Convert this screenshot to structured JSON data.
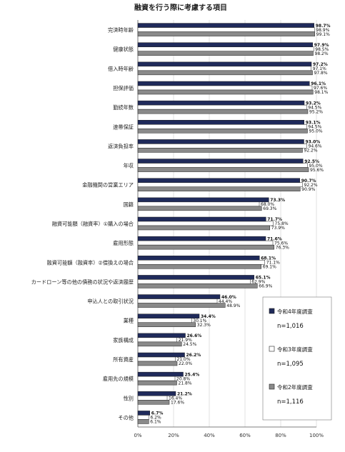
{
  "chart_data": {
    "type": "bar",
    "orientation": "horizontal",
    "title": "融資を行う際に考慮する項目",
    "xlim": [
      0,
      100
    ],
    "x_ticks": [
      "0%",
      "20%",
      "40%",
      "60%",
      "80%",
      "100%"
    ],
    "grid": true,
    "legend_position": "lower-right",
    "categories": [
      "完済時年齢",
      "健康状態",
      "借入時年齢",
      "担保評価",
      "勤続年数",
      "連帯保証",
      "返済負担率",
      "年収",
      "金融機関の営業エリア",
      "国籍",
      "融資可能額（融資率）①購入の場合",
      "雇用形態",
      "融資可能額（融資率）②借換えの場合",
      "カードローン等の他の債務の状況や返済履歴",
      "申込人との取引状況",
      "業種",
      "家族構成",
      "所有資産",
      "雇用先の規模",
      "性別",
      "その他"
    ],
    "series": [
      {
        "name": "令和4年度調査",
        "color": "#1f2a5a",
        "values": [
          98.7,
          97.9,
          97.2,
          96.1,
          93.2,
          93.1,
          93.0,
          92.5,
          90.7,
          73.3,
          71.7,
          71.6,
          68.1,
          65.1,
          46.0,
          34.4,
          26.6,
          26.2,
          25.4,
          21.2,
          6.7
        ],
        "labels": [
          "98.7%",
          "97.9%",
          "97.2%",
          "96.1%",
          "93.2%",
          "93.1%",
          "93.0%",
          "92.5%",
          "90.7%",
          "73.3%",
          "71.7%",
          "71.6%",
          "68.1%",
          "65.1%",
          "46.0%",
          "34.4%",
          "26.6%",
          "26.2%",
          "25.4%",
          "21.2%",
          "6.7%"
        ]
      },
      {
        "name": "令和3年度調査",
        "color": "#ffffff",
        "values": [
          98.9,
          98.5,
          97.1,
          97.6,
          94.5,
          94.5,
          94.6,
          95.0,
          92.2,
          68.0,
          75.8,
          75.6,
          71.1,
          62.9,
          44.4,
          30.1,
          21.9,
          21.0,
          20.8,
          16.4,
          6.2
        ],
        "labels": [
          "98.9%",
          "98.5%",
          "97.1%",
          "97.6%",
          "94.5%",
          "94.5%",
          "94.6%",
          "95.0%",
          "92.2%",
          "68.0%",
          "75.8%",
          "75.6%",
          "71.1%",
          "62.9%",
          "44.4%",
          "30.1%",
          "21.9%",
          "21.0%",
          "20.8%",
          "16.4%",
          "6.2%"
        ]
      },
      {
        "name": "令和2年度調査",
        "color": "#8a8a8a",
        "values": [
          99.1,
          98.2,
          97.8,
          98.1,
          95.2,
          95.0,
          92.2,
          95.6,
          90.9,
          69.3,
          73.9,
          76.3,
          69.1,
          66.9,
          48.9,
          32.3,
          24.5,
          22.0,
          21.8,
          17.6,
          6.1
        ],
        "labels": [
          "99.1%",
          "98.2%",
          "97.8%",
          "98.1%",
          "95.2%",
          "95.0%",
          "92.2%",
          "95.6%",
          "90.9%",
          "69.3%",
          "73.9%",
          "76.3%",
          "69.1%",
          "66.9%",
          "48.9%",
          "32.3%",
          "24.5%",
          "22.0%",
          "21.8%",
          "17.6%",
          "6.1%"
        ]
      }
    ]
  },
  "legend": [
    {
      "name": "令和4年度調査",
      "n": "n=1,016"
    },
    {
      "name": "令和3年度調査",
      "n": "n=1,095"
    },
    {
      "name": "令和2年度調査",
      "n": "n=1,116"
    }
  ]
}
